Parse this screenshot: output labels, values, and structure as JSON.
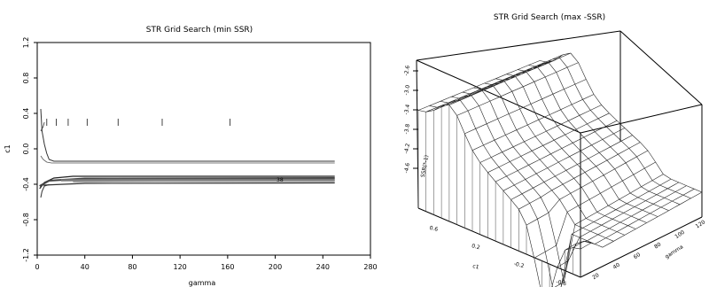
{
  "chart_data": [
    {
      "type": "contour",
      "title": "STR Grid Search (min SSR)",
      "xlabel": "gamma",
      "ylabel": "c1",
      "xlim": [
        0,
        280
      ],
      "ylim": [
        -1.2,
        1.2
      ],
      "xticks": [
        "0",
        "40",
        "80",
        "120",
        "160",
        "200",
        "240",
        "280"
      ],
      "yticks": [
        "1.2",
        "0.8",
        "0.4",
        "0.0",
        "-0.4",
        "-0.8",
        "-1.2"
      ],
      "contour_label": "38",
      "tick_marks_c1": 0.3,
      "tick_marks_gamma": [
        8,
        16,
        26,
        42,
        68,
        105,
        162
      ]
    },
    {
      "type": "surface",
      "title": "STR Grid Search (max -SSR)",
      "zlabel": "SSR(*-1)",
      "xlabel": "c1",
      "ylabel": "gamma",
      "zticks": [
        "-2.6",
        "-3.0",
        "-3.4",
        "-3.8",
        "-4.2",
        "-4.6"
      ],
      "xticks": [
        "0.6",
        "0.2",
        "-0.2",
        "-0.6"
      ],
      "yticks": [
        "20",
        "40",
        "60",
        "80",
        "100",
        "120"
      ]
    }
  ]
}
